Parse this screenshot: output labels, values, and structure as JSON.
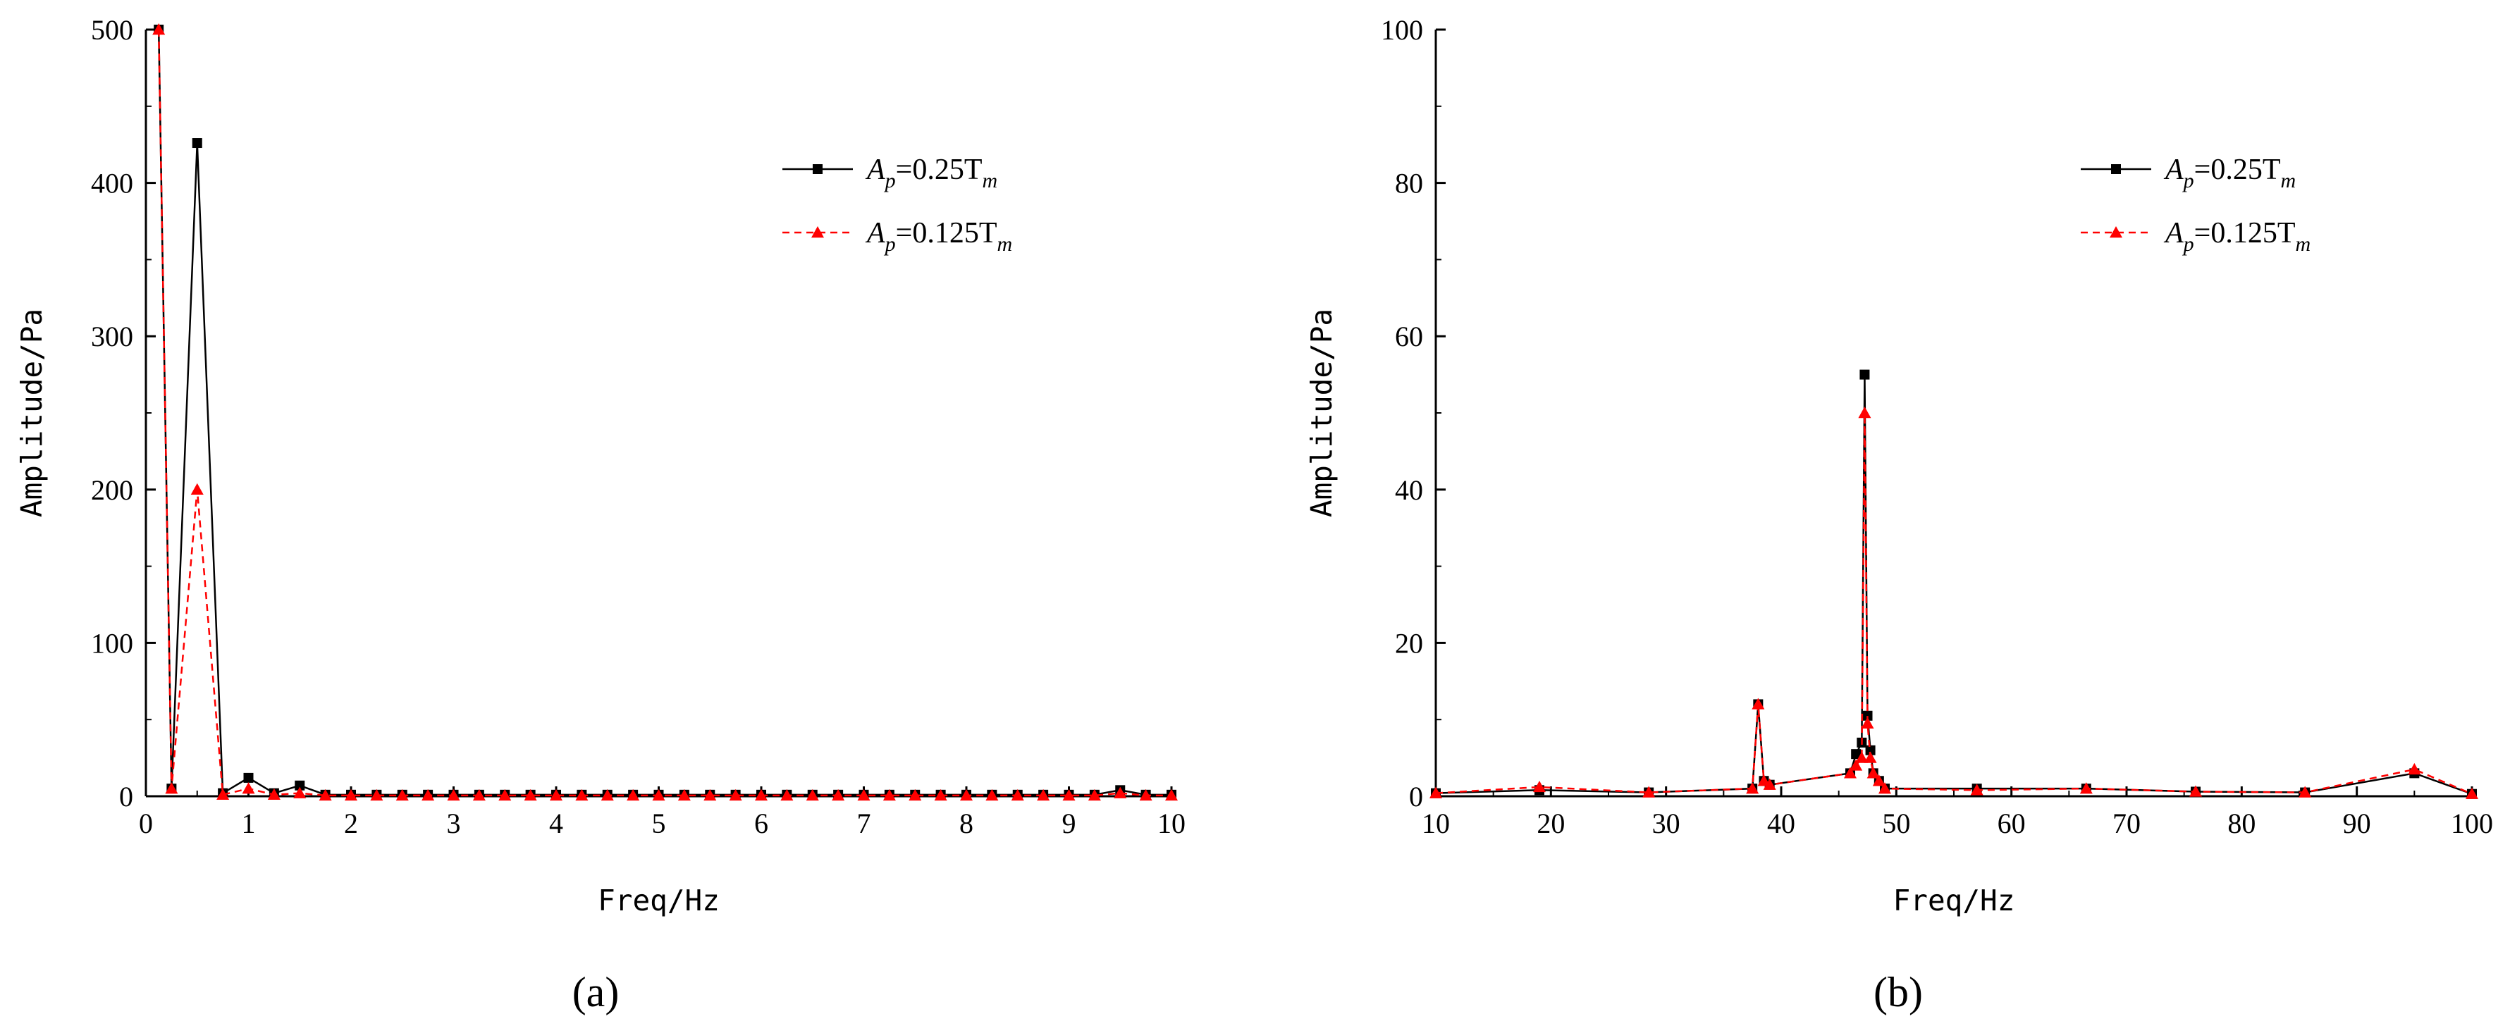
{
  "chart_data": [
    {
      "type": "line",
      "panel_label": "(a)",
      "xlabel": "Freq/Hz",
      "ylabel": "Amplitude/Pa",
      "xlim": [
        0,
        10
      ],
      "ylim": [
        0,
        500
      ],
      "xticks": [
        0,
        1,
        2,
        3,
        4,
        5,
        6,
        7,
        8,
        9,
        10
      ],
      "yticks": [
        0,
        100,
        200,
        300,
        400,
        500
      ],
      "grid": false,
      "legend_position": "top-right",
      "series": [
        {
          "name": "Ap=0.25Tm",
          "legend_main": "A",
          "legend_sub1": "p",
          "legend_mid": "=0.25T",
          "legend_sub2": "m",
          "color": "#000000",
          "line": "solid",
          "marker": "square",
          "x": [
            0.125,
            0.25,
            0.5,
            0.75,
            1.0,
            1.25,
            1.5,
            1.75,
            2.0,
            2.25,
            2.5,
            2.75,
            3.0,
            3.25,
            3.5,
            3.75,
            4.0,
            4.25,
            4.5,
            4.75,
            5.0,
            5.25,
            5.5,
            5.75,
            6.0,
            6.25,
            6.5,
            6.75,
            7.0,
            7.25,
            7.5,
            7.75,
            8.0,
            8.25,
            8.5,
            8.75,
            9.0,
            9.25,
            9.5,
            9.75,
            10.0
          ],
          "y": [
            500,
            5,
            426,
            2,
            12,
            2,
            7,
            1,
            1,
            1,
            1,
            1,
            1,
            1,
            1,
            1,
            1,
            1,
            1,
            1,
            1,
            1,
            1,
            1,
            1,
            1,
            1,
            1,
            1,
            1,
            1,
            1,
            1,
            1,
            1,
            1,
            1,
            1,
            4,
            1,
            1
          ]
        },
        {
          "name": "Ap=0.125Tm",
          "legend_main": "A",
          "legend_sub1": "p",
          "legend_mid": "=0.125T",
          "legend_sub2": "m",
          "color": "#ff0000",
          "line": "dashed",
          "marker": "triangle",
          "x": [
            0.125,
            0.25,
            0.5,
            0.75,
            1.0,
            1.25,
            1.5,
            1.75,
            2.0,
            2.25,
            2.5,
            2.75,
            3.0,
            3.25,
            3.5,
            3.75,
            4.0,
            4.25,
            4.5,
            4.75,
            5.0,
            5.25,
            5.5,
            5.75,
            6.0,
            6.25,
            6.5,
            6.75,
            7.0,
            7.25,
            7.5,
            7.75,
            8.0,
            8.25,
            8.5,
            8.75,
            9.0,
            9.25,
            9.5,
            9.75,
            10.0
          ],
          "y": [
            500,
            5,
            200,
            1,
            5,
            1,
            2,
            0.5,
            0.5,
            0.5,
            0.5,
            0.5,
            0.5,
            0.5,
            0.5,
            0.5,
            0.5,
            0.5,
            0.5,
            0.5,
            0.5,
            0.5,
            0.5,
            0.5,
            0.5,
            0.5,
            0.5,
            0.5,
            0.5,
            0.5,
            0.5,
            0.5,
            0.5,
            0.5,
            0.5,
            0.5,
            0.5,
            0.5,
            2,
            0.5,
            0.5
          ]
        }
      ]
    },
    {
      "type": "line",
      "panel_label": "(b)",
      "xlabel": "Freq/Hz",
      "ylabel": "Amplitude/Pa",
      "xlim": [
        10,
        100
      ],
      "ylim": [
        0,
        100
      ],
      "xticks": [
        10,
        20,
        30,
        40,
        50,
        60,
        70,
        80,
        90,
        100
      ],
      "yticks": [
        0,
        20,
        40,
        60,
        80,
        100
      ],
      "grid": false,
      "legend_position": "top-right",
      "series": [
        {
          "name": "Ap=0.25Tm",
          "legend_main": "A",
          "legend_sub1": "p",
          "legend_mid": "=0.25T",
          "legend_sub2": "m",
          "color": "#000000",
          "line": "solid",
          "marker": "square",
          "x": [
            10,
            19,
            28.5,
            37.5,
            38,
            38.5,
            39,
            46,
            46.5,
            47,
            47.25,
            47.5,
            47.75,
            48,
            48.5,
            49,
            57,
            66.5,
            76,
            85.5,
            95,
            100
          ],
          "y": [
            0.4,
            0.8,
            0.5,
            1,
            12,
            2,
            1.5,
            3,
            5.5,
            7,
            55,
            10.5,
            6,
            3,
            2,
            1,
            1,
            1,
            0.6,
            0.5,
            3,
            0.3
          ]
        },
        {
          "name": "Ap=0.125Tm",
          "legend_main": "A",
          "legend_sub1": "p",
          "legend_mid": "=0.125T",
          "legend_sub2": "m",
          "color": "#ff0000",
          "line": "dashed",
          "marker": "triangle",
          "x": [
            10,
            19,
            28.5,
            37.5,
            38,
            38.5,
            39,
            46,
            46.5,
            47,
            47.25,
            47.5,
            47.75,
            48,
            48.5,
            49,
            57,
            66.5,
            76,
            85.5,
            95,
            100
          ],
          "y": [
            0.4,
            1.2,
            0.5,
            1,
            12,
            2,
            1.5,
            3,
            4,
            5,
            50,
            9.5,
            5,
            3,
            2,
            1,
            0.8,
            1,
            0.6,
            0.5,
            3.5,
            0.3
          ]
        }
      ]
    }
  ]
}
